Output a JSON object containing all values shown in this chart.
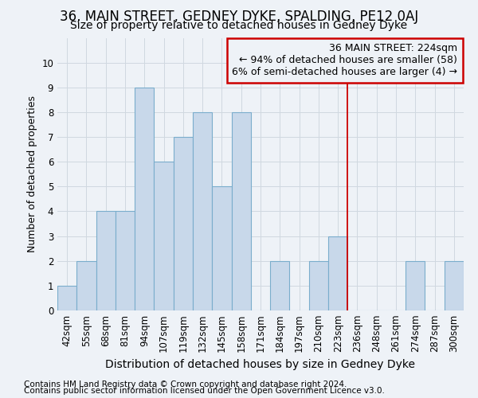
{
  "title": "36, MAIN STREET, GEDNEY DYKE, SPALDING, PE12 0AJ",
  "subtitle": "Size of property relative to detached houses in Gedney Dyke",
  "xlabel": "Distribution of detached houses by size in Gedney Dyke",
  "ylabel": "Number of detached properties",
  "footer_line1": "Contains HM Land Registry data © Crown copyright and database right 2024.",
  "footer_line2": "Contains public sector information licensed under the Open Government Licence v3.0.",
  "bin_labels": [
    "42sqm",
    "55sqm",
    "68sqm",
    "81sqm",
    "94sqm",
    "107sqm",
    "119sqm",
    "132sqm",
    "145sqm",
    "158sqm",
    "171sqm",
    "184sqm",
    "197sqm",
    "210sqm",
    "223sqm",
    "236sqm",
    "248sqm",
    "261sqm",
    "274sqm",
    "287sqm",
    "300sqm"
  ],
  "bar_heights": [
    1,
    2,
    4,
    4,
    9,
    6,
    7,
    8,
    5,
    8,
    0,
    2,
    0,
    2,
    3,
    0,
    0,
    0,
    2,
    0,
    2
  ],
  "bar_color": "#c8d8ea",
  "bar_edge_color": "#7aadcc",
  "grid_color": "#d0d8e0",
  "annotation_line1": "36 MAIN STREET: 224sqm",
  "annotation_line2": "← 94% of detached houses are smaller (58)",
  "annotation_line3": "6% of semi-detached houses are larger (4) →",
  "annotation_box_color": "#cc0000",
  "vline_color": "#cc0000",
  "vline_x_index": 14,
  "ylim": [
    0,
    11
  ],
  "yticks": [
    0,
    1,
    2,
    3,
    4,
    5,
    6,
    7,
    8,
    9,
    10,
    11
  ],
  "background_color": "#eef2f7",
  "title_fontsize": 12,
  "subtitle_fontsize": 10,
  "xlabel_fontsize": 10,
  "ylabel_fontsize": 9,
  "tick_fontsize": 8.5,
  "annotation_fontsize": 9,
  "footer_fontsize": 7.5
}
